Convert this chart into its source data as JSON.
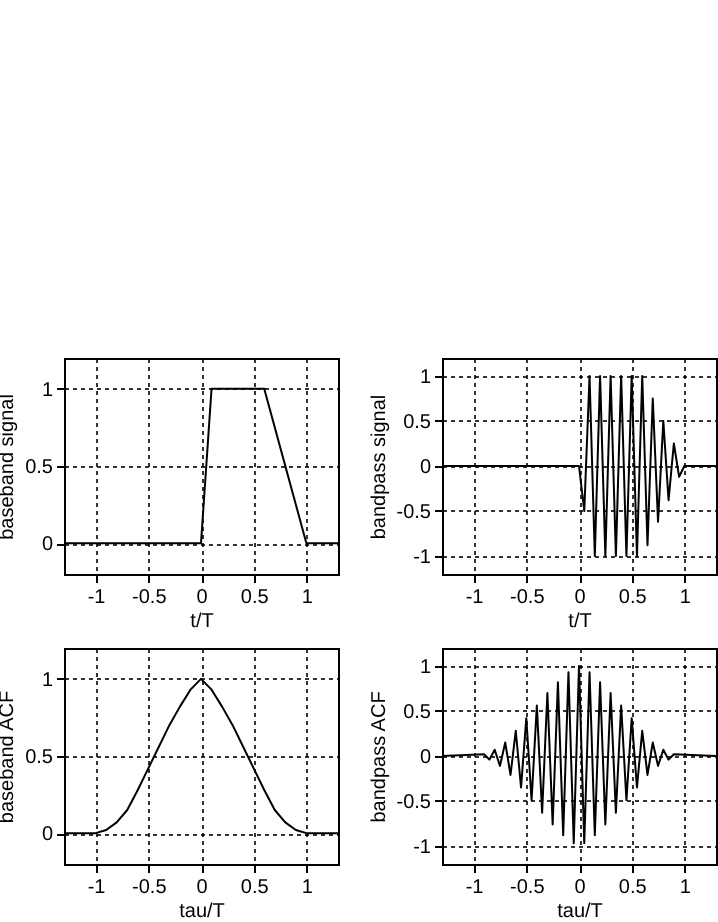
{
  "chart_data": [
    {
      "type": "line",
      "xlabel": "t/T",
      "ylabel": "baseband signal",
      "x": [
        -1.3,
        0,
        0.1,
        0.6,
        1,
        1.3
      ],
      "series": [
        {
          "color": "#000000",
          "values": [
            0,
            0,
            1,
            1,
            0,
            0
          ]
        }
      ],
      "xlim": [
        -1.3,
        1.3
      ],
      "ylim": [
        -0.2,
        1.2
      ],
      "xticks": [
        -1,
        -0.5,
        0,
        0.5,
        1
      ],
      "yticks": [
        0,
        0.5,
        1
      ],
      "grid": true,
      "line_style": "solid"
    },
    {
      "type": "line",
      "xlabel": "t/T",
      "ylabel": "bandpass signal",
      "x": [
        -1.3,
        0,
        0.05,
        0.1,
        0.15,
        0.2,
        0.25,
        0.3,
        0.35,
        0.4,
        0.45,
        0.5,
        0.55,
        0.6,
        0.65,
        0.7,
        0.75,
        0.8,
        0.85,
        0.9,
        0.95,
        1,
        1.3
      ],
      "series": [
        {
          "color": "#000000",
          "values": [
            0,
            0,
            -0.5,
            1,
            -1,
            1,
            -1,
            1,
            -1,
            1,
            -1,
            1,
            -1,
            1,
            -0.88,
            0.75,
            -0.62,
            0.5,
            -0.38,
            0.25,
            -0.12,
            0,
            0
          ]
        }
      ],
      "xlim": [
        -1.3,
        1.3
      ],
      "ylim": [
        -1.2,
        1.2
      ],
      "xticks": [
        -1,
        -0.5,
        0,
        0.5,
        1
      ],
      "yticks": [
        -1,
        -0.5,
        0,
        0.5,
        1
      ],
      "grid": true,
      "line_style": "solid"
    },
    {
      "type": "line",
      "xlabel": "tau/T",
      "ylabel": "baseband ACF",
      "x": [
        -1.3,
        -1,
        -0.9,
        -0.8,
        -0.7,
        -0.6,
        -0.5,
        -0.4,
        -0.3,
        -0.2,
        -0.1,
        0,
        0.1,
        0.2,
        0.3,
        0.4,
        0.5,
        0.6,
        0.7,
        0.8,
        0.9,
        1,
        1.3
      ],
      "series": [
        {
          "color": "#000000",
          "values": [
            0,
            0,
            0.02,
            0.07,
            0.15,
            0.28,
            0.42,
            0.56,
            0.7,
            0.82,
            0.93,
            1,
            0.93,
            0.82,
            0.7,
            0.56,
            0.42,
            0.28,
            0.15,
            0.07,
            0.02,
            0,
            0
          ]
        }
      ],
      "xlim": [
        -1.3,
        1.3
      ],
      "ylim": [
        -0.2,
        1.2
      ],
      "xticks": [
        -1,
        -0.5,
        0,
        0.5,
        1
      ],
      "yticks": [
        0,
        0.5,
        1
      ],
      "grid": true,
      "line_style": "solid"
    },
    {
      "type": "line",
      "xlabel": "tau/T",
      "ylabel": "bandpass ACF",
      "x": [
        -1.3,
        -0.9,
        -0.85,
        -0.8,
        -0.75,
        -0.7,
        -0.65,
        -0.6,
        -0.55,
        -0.5,
        -0.45,
        -0.4,
        -0.35,
        -0.3,
        -0.25,
        -0.2,
        -0.15,
        -0.1,
        -0.05,
        0,
        0.05,
        0.1,
        0.15,
        0.2,
        0.25,
        0.3,
        0.35,
        0.4,
        0.45,
        0.5,
        0.55,
        0.6,
        0.65,
        0.7,
        0.75,
        0.8,
        0.85,
        0.9,
        1.3
      ],
      "series": [
        {
          "color": "#000000",
          "values": [
            0,
            0.02,
            -0.04,
            0.07,
            -0.11,
            0.15,
            -0.21,
            0.28,
            -0.35,
            0.42,
            -0.49,
            0.56,
            -0.63,
            0.7,
            -0.76,
            0.82,
            -0.88,
            0.93,
            -0.97,
            1,
            -0.97,
            0.93,
            -0.88,
            0.82,
            -0.76,
            0.7,
            -0.63,
            0.56,
            -0.49,
            0.42,
            -0.35,
            0.28,
            -0.21,
            0.15,
            -0.11,
            0.07,
            -0.04,
            0.02,
            0
          ]
        }
      ],
      "xlim": [
        -1.3,
        1.3
      ],
      "ylim": [
        -1.2,
        1.2
      ],
      "xticks": [
        -1,
        -0.5,
        0,
        0.5,
        1
      ],
      "yticks": [
        -1,
        -0.5,
        0,
        0.5,
        1
      ],
      "grid": true,
      "line_style": "solid"
    }
  ]
}
